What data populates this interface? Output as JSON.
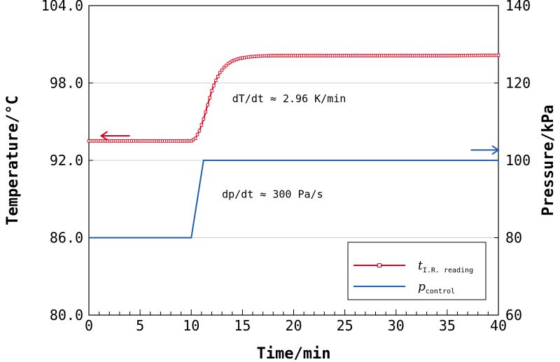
{
  "chart_data": {
    "type": "line",
    "xlabel": "Time/min",
    "ylabel_left": "Temperature/°C",
    "ylabel_right": "Pressure/kPa",
    "xlim": [
      0,
      40
    ],
    "ylim_left": [
      80,
      104
    ],
    "ylim_right": [
      60,
      140
    ],
    "x_ticks": [
      0,
      5,
      10,
      15,
      20,
      25,
      30,
      35,
      40
    ],
    "x_tick_labels": [
      "0",
      "5",
      "10",
      "15",
      "20",
      "25",
      "30",
      "35",
      "40"
    ],
    "y_left_ticks": [
      80,
      86,
      92,
      98,
      104
    ],
    "y_left_tick_labels": [
      "80.0",
      "86.0",
      "92.0",
      "98.0",
      "104.0"
    ],
    "y_right_ticks": [
      60,
      80,
      100,
      120,
      140
    ],
    "y_right_tick_labels": [
      "60",
      "80",
      "100",
      "120",
      "140"
    ],
    "grid": "horizontal",
    "legend_position": "bottom-right",
    "series": [
      {
        "name": "t",
        "name_subscript": "I.R. reading",
        "axis": "left",
        "color": "#e0001b",
        "marker": "open-square",
        "x": [
          0,
          9,
          10,
          10.4,
          10.8,
          11.2,
          11.6,
          12.0,
          12.4,
          12.8,
          13.2,
          13.6,
          14.0,
          14.5,
          15,
          16,
          17,
          18,
          20,
          25,
          30,
          35,
          40
        ],
        "y": [
          93.5,
          93.5,
          93.5,
          93.7,
          94.3,
          95.2,
          96.3,
          97.4,
          98.2,
          98.8,
          99.2,
          99.5,
          99.7,
          99.85,
          99.95,
          100.05,
          100.1,
          100.12,
          100.12,
          100.12,
          100.12,
          100.12,
          100.15
        ]
      },
      {
        "name": "p",
        "name_subscript": "control",
        "axis": "right",
        "color": "#1f5fb0",
        "x": [
          0,
          10,
          11.2,
          40
        ],
        "y": [
          80,
          80,
          100,
          100
        ]
      }
    ],
    "annotations": [
      {
        "text": "dT/dt ≈ 2.96 K/min",
        "x": 14,
        "y_left": 96.5
      },
      {
        "text": "dp/dt ≈ 300 Pa/s",
        "x": 13,
        "y_left": 89.1
      }
    ],
    "arrows": [
      {
        "direction": "left",
        "color": "#e0001b",
        "x_from": 4,
        "x_to": 1.2,
        "y_left": 93.9
      },
      {
        "direction": "right",
        "color": "#1f5fb0",
        "x_from": 37.3,
        "x_to": 40,
        "y_left": 92.8
      }
    ]
  }
}
